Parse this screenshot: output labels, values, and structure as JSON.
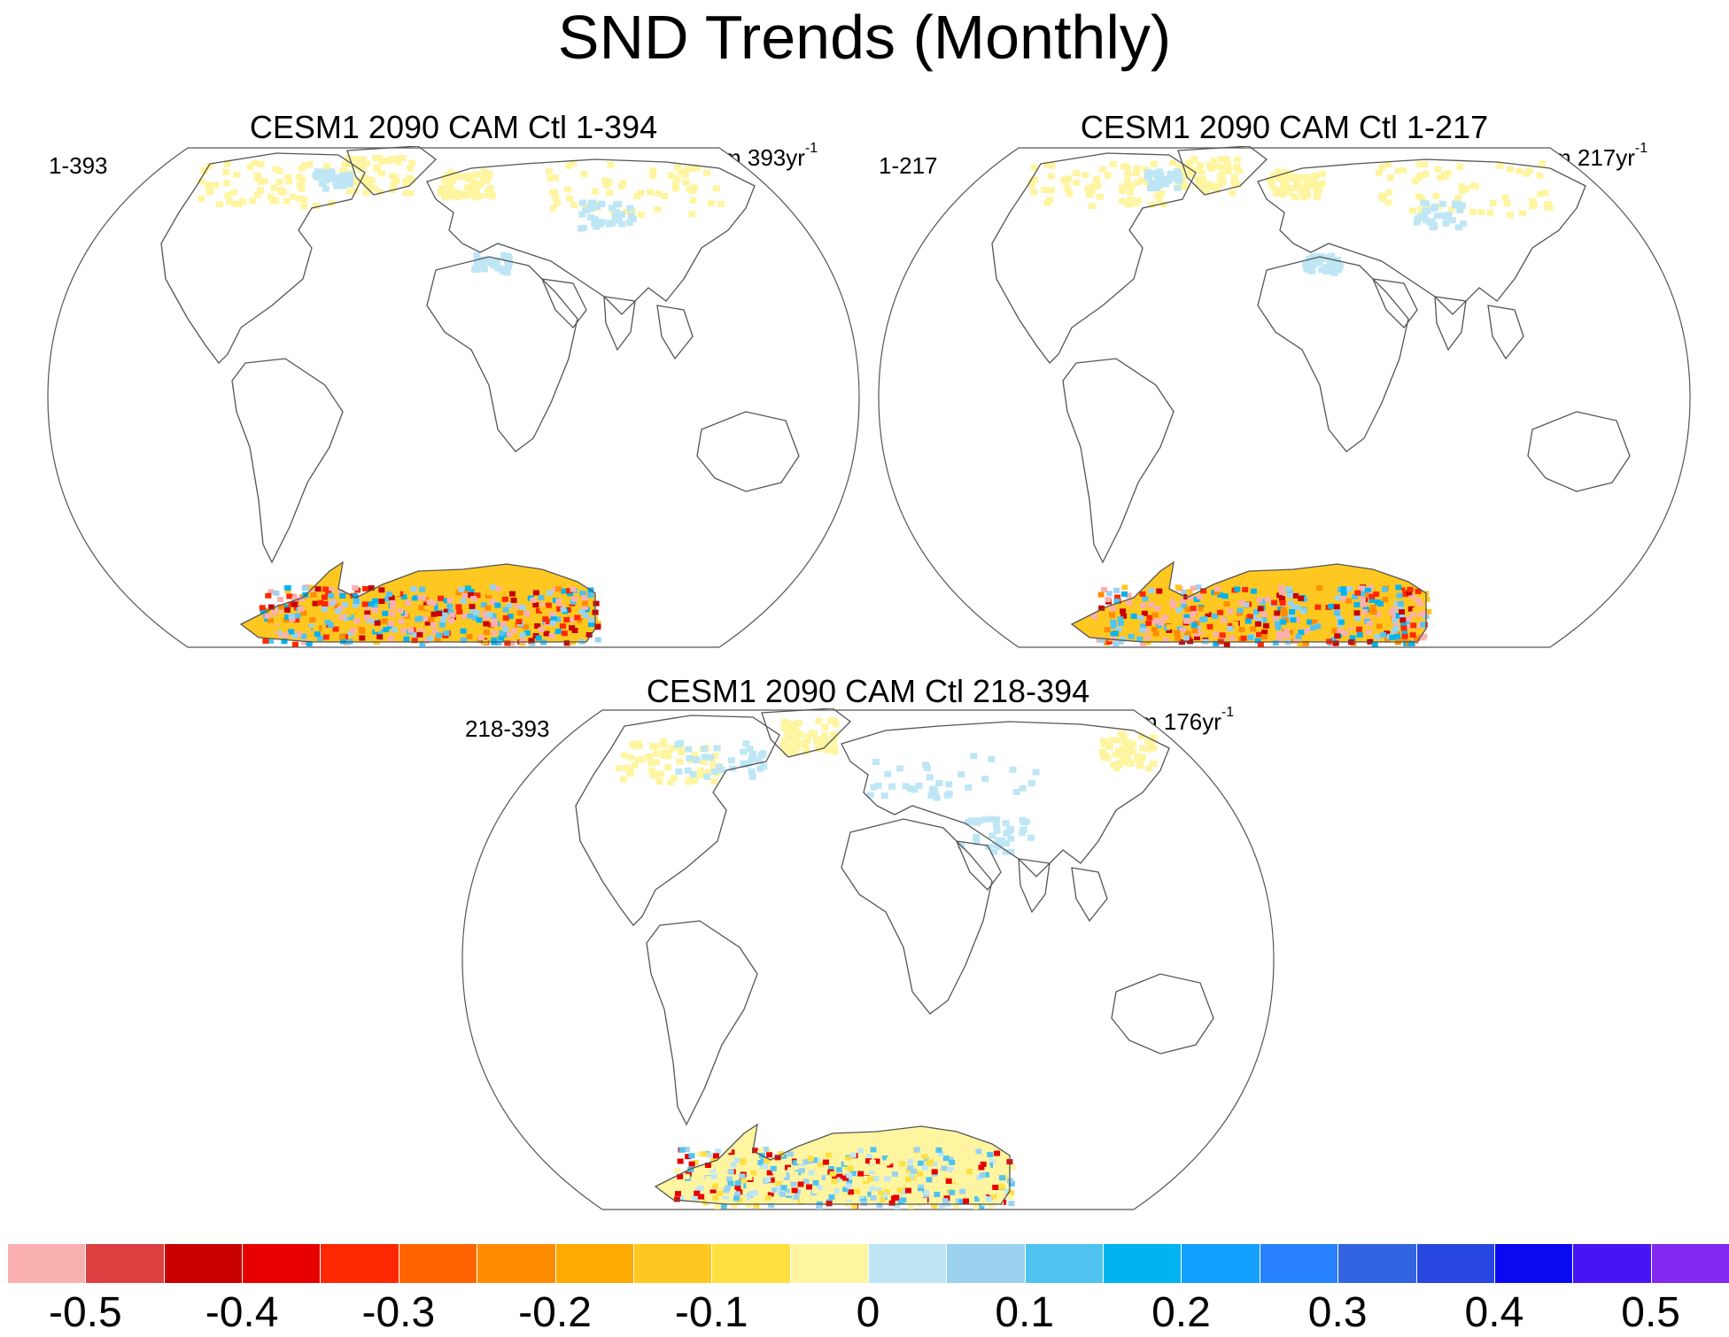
{
  "title": "SND Trends (Monthly)",
  "panels": [
    {
      "title": "CESM1 2090 CAM Ctl 1-394",
      "left_label": "1-393",
      "right_label": "m 393yr",
      "right_sup": "-1"
    },
    {
      "title": "CESM1 2090 CAM Ctl 1-217",
      "left_label": "1-217",
      "right_label": "m 217yr",
      "right_sup": "-1"
    },
    {
      "title": "CESM1 2090 CAM Ctl 218-394",
      "left_label": "218-393",
      "right_label": "m 176yr",
      "right_sup": "-1"
    }
  ],
  "colorbar": {
    "colors": [
      "#fbb0b0",
      "#dc4040",
      "#c80000",
      "#e80000",
      "#ff2800",
      "#ff6400",
      "#ff8c00",
      "#ffaa00",
      "#ffc820",
      "#ffe040",
      "#fff5a0",
      "#bee6f5",
      "#9bd2f0",
      "#50c3f0",
      "#00b4f0",
      "#14a0ff",
      "#2882ff",
      "#3264e1",
      "#2846e1",
      "#0a0af0",
      "#4614f5",
      "#8228f0"
    ],
    "labels": [
      "-0.5",
      "-0.4",
      "-0.3",
      "-0.2",
      "-0.1",
      "0",
      "0.1",
      "0.2",
      "0.3",
      "0.4",
      "0.5"
    ]
  },
  "chart_data": {
    "type": "heatmap",
    "title": "SND Trends (Monthly)",
    "variable": "SND",
    "units_label": "m yr-1",
    "color_levels": [
      -0.5,
      -0.45,
      -0.4,
      -0.35,
      -0.3,
      -0.25,
      -0.2,
      -0.15,
      -0.1,
      -0.05,
      0,
      0.05,
      0.1,
      0.15,
      0.2,
      0.25,
      0.3,
      0.35,
      0.4,
      0.45,
      0.5
    ],
    "maps": [
      {
        "title": "CESM1 2090 CAM Ctl 1-394",
        "period": "1-393",
        "years": 393
      },
      {
        "title": "CESM1 2090 CAM Ctl 1-217",
        "period": "1-217",
        "years": 217
      },
      {
        "title": "CESM1 2090 CAM Ctl 218-394",
        "period": "218-393",
        "years": 176
      }
    ]
  }
}
